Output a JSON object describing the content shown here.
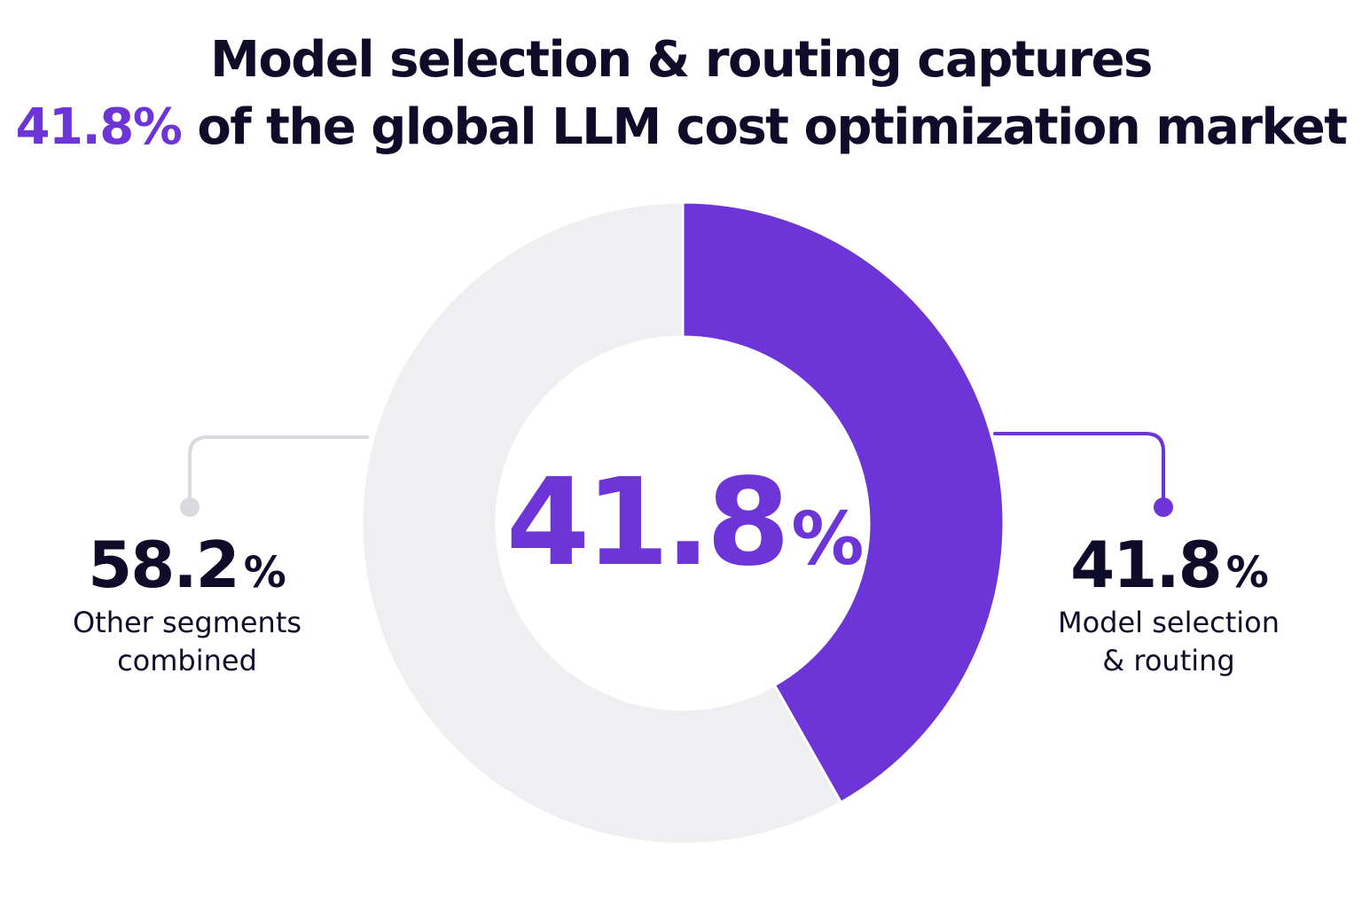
{
  "title": {
    "line1": "Model selection & routing captures",
    "line2_highlight": "41.8%",
    "line2_rest": " of the global LLM cost optimization market"
  },
  "colors": {
    "accent": "#6d35d8",
    "rest": "#efeff1",
    "text": "#0f0c2a",
    "leader_gray": "#d9d9de"
  },
  "chart_data": {
    "type": "pie",
    "variant": "donut",
    "title": "Model selection & routing captures 41.8% of the global LLM cost optimization market",
    "center_label": {
      "value": "41.8",
      "unit": "%"
    },
    "slices": [
      {
        "name": "Model selection & routing",
        "value": 41.8,
        "label_value": "41.8",
        "unit": "%",
        "label_line1": "Model selection",
        "label_line2": "& routing",
        "color": "#6d35d8"
      },
      {
        "name": "Other segments combined",
        "value": 58.2,
        "label_value": "58.2",
        "unit": "%",
        "label_line1": "Other segments",
        "label_line2": "combined",
        "color": "#efeff1"
      }
    ],
    "legend": "none"
  }
}
